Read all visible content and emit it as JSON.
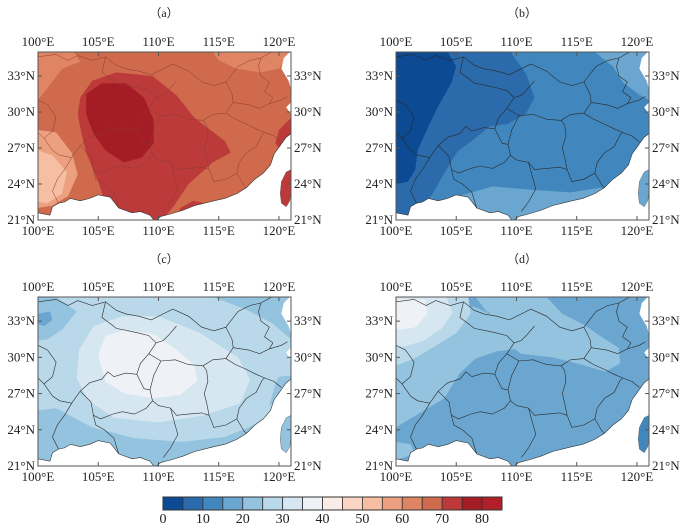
{
  "chart_data": {
    "type": "heatmap",
    "description_levels": "filled contour maps, 4 panels sharing one colorbar",
    "panels": [
      {
        "id": "a",
        "title": "（a）"
      },
      {
        "id": "b",
        "title": "（b）"
      },
      {
        "id": "c",
        "title": "（c）"
      },
      {
        "id": "d",
        "title": "（d）"
      }
    ],
    "lon_ticks": [
      "100°E",
      "105°E",
      "110°E",
      "115°E",
      "120°E"
    ],
    "lon_values": [
      100,
      105,
      110,
      115,
      120
    ],
    "lat_ticks": [
      "33°N",
      "30°N",
      "27°N",
      "24°N",
      "21°N"
    ],
    "lat_values": [
      33,
      30,
      27,
      24,
      21
    ],
    "lon_range": [
      100,
      121
    ],
    "lat_range": [
      21,
      35
    ],
    "colorbar": {
      "min": 0,
      "max": 85,
      "step": 5,
      "tick_labels": [
        "0",
        "10",
        "20",
        "30",
        "40",
        "50",
        "60",
        "70",
        "80"
      ],
      "tick_values": [
        0,
        10,
        20,
        30,
        40,
        50,
        60,
        70,
        80
      ],
      "colors": [
        "#0c4a93",
        "#2b6bab",
        "#4187bd",
        "#6aa6cf",
        "#93c3de",
        "#b9d8e9",
        "#d6e7f1",
        "#eef2f6",
        "#f9ebe6",
        "#fbd5c3",
        "#f6bea2",
        "#eca080",
        "#df8564",
        "#cf6a4d",
        "#bd3a3a",
        "#a51d24",
        "#b11f2a"
      ]
    },
    "land_color": "#ffffff",
    "border_color": "#333333"
  }
}
